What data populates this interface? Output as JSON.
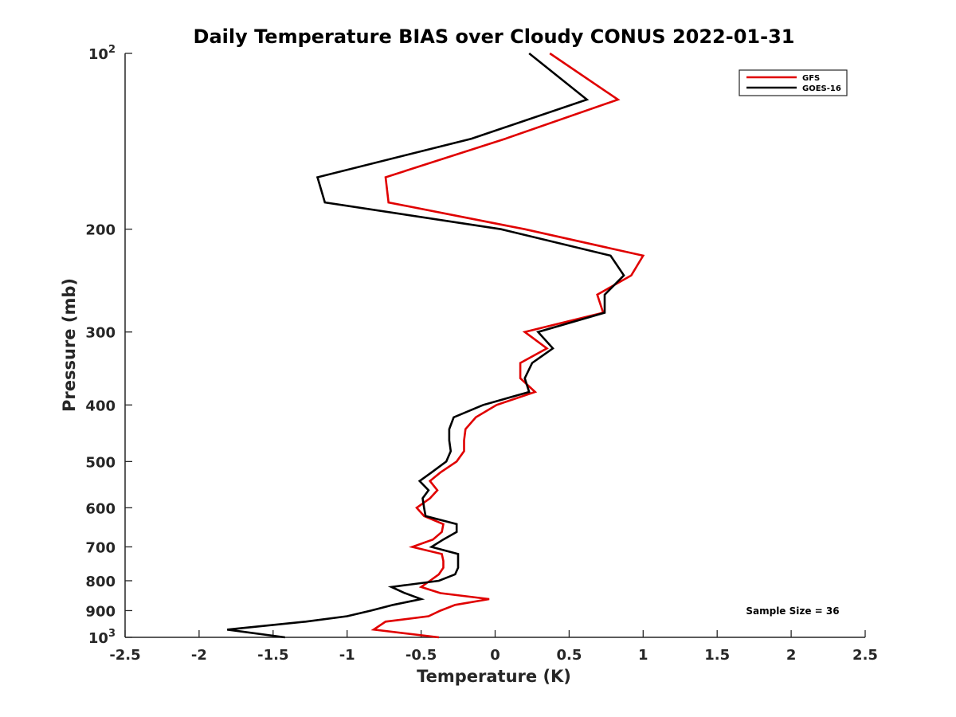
{
  "chart_data": {
    "type": "line",
    "title": "Daily Temperature BIAS over Cloudy CONUS 2022-01-31",
    "xlabel": "Temperature (K)",
    "ylabel": "Pressure (mb)",
    "xlim": [
      -2.5,
      2.5
    ],
    "ylim": [
      100,
      1000
    ],
    "yscale": "log",
    "y_reversed": true,
    "grid": false,
    "legend_position": "top-right",
    "x_ticks": [
      "-2.5",
      "-2",
      "-1.5",
      "-1",
      "-0.5",
      "0",
      "0.5",
      "1",
      "1.5",
      "2",
      "2.5"
    ],
    "y_ticks": [
      {
        "value": 100,
        "label": "10",
        "exp": "2"
      },
      {
        "value": 200,
        "label": "200"
      },
      {
        "value": 300,
        "label": "300"
      },
      {
        "value": 400,
        "label": "400"
      },
      {
        "value": 500,
        "label": "500"
      },
      {
        "value": 600,
        "label": "600"
      },
      {
        "value": 700,
        "label": "700"
      },
      {
        "value": 800,
        "label": "800"
      },
      {
        "value": 900,
        "label": "900"
      },
      {
        "value": 1000,
        "label": "10",
        "exp": "3"
      }
    ],
    "annotation": "Sample Size = 36",
    "series": [
      {
        "name": "GFS",
        "color": "#e00000",
        "points": [
          [
            0.37,
            100
          ],
          [
            0.83,
            120
          ],
          [
            0.07,
            140
          ],
          [
            -0.74,
            163
          ],
          [
            -0.72,
            180
          ],
          [
            0.2,
            200
          ],
          [
            1.0,
            222
          ],
          [
            0.92,
            240
          ],
          [
            0.69,
            259
          ],
          [
            0.73,
            278
          ],
          [
            0.2,
            300
          ],
          [
            0.35,
            320
          ],
          [
            0.17,
            339
          ],
          [
            0.17,
            360
          ],
          [
            0.27,
            380
          ],
          [
            0.01,
            400
          ],
          [
            -0.13,
            420
          ],
          [
            -0.2,
            440
          ],
          [
            -0.21,
            460
          ],
          [
            -0.21,
            480
          ],
          [
            -0.26,
            500
          ],
          [
            -0.37,
            522
          ],
          [
            -0.44,
            540
          ],
          [
            -0.39,
            560
          ],
          [
            -0.44,
            578
          ],
          [
            -0.53,
            600
          ],
          [
            -0.48,
            620
          ],
          [
            -0.35,
            640
          ],
          [
            -0.36,
            660
          ],
          [
            -0.42,
            680
          ],
          [
            -0.56,
            700
          ],
          [
            -0.36,
            720
          ],
          [
            -0.35,
            740
          ],
          [
            -0.35,
            760
          ],
          [
            -0.38,
            780
          ],
          [
            -0.44,
            800
          ],
          [
            -0.5,
            820
          ],
          [
            -0.37,
            840
          ],
          [
            -0.04,
            860
          ],
          [
            -0.27,
            880
          ],
          [
            -0.37,
            900
          ],
          [
            -0.45,
            920
          ],
          [
            -0.74,
            940
          ],
          [
            -0.82,
            970
          ],
          [
            -0.38,
            1000
          ]
        ]
      },
      {
        "name": "GOES-16",
        "color": "#000000",
        "points": [
          [
            0.23,
            100
          ],
          [
            0.62,
            120
          ],
          [
            -0.16,
            140
          ],
          [
            -1.2,
            163
          ],
          [
            -1.15,
            180
          ],
          [
            0.04,
            200
          ],
          [
            0.78,
            222
          ],
          [
            0.87,
            240
          ],
          [
            0.74,
            259
          ],
          [
            0.74,
            278
          ],
          [
            0.29,
            300
          ],
          [
            0.39,
            320
          ],
          [
            0.25,
            339
          ],
          [
            0.2,
            360
          ],
          [
            0.23,
            380
          ],
          [
            -0.08,
            400
          ],
          [
            -0.28,
            420
          ],
          [
            -0.31,
            440
          ],
          [
            -0.31,
            460
          ],
          [
            -0.3,
            480
          ],
          [
            -0.33,
            500
          ],
          [
            -0.43,
            522
          ],
          [
            -0.51,
            540
          ],
          [
            -0.45,
            560
          ],
          [
            -0.49,
            578
          ],
          [
            -0.48,
            600
          ],
          [
            -0.47,
            620
          ],
          [
            -0.26,
            640
          ],
          [
            -0.26,
            660
          ],
          [
            -0.35,
            680
          ],
          [
            -0.43,
            700
          ],
          [
            -0.25,
            720
          ],
          [
            -0.25,
            740
          ],
          [
            -0.25,
            760
          ],
          [
            -0.27,
            780
          ],
          [
            -0.38,
            800
          ],
          [
            -0.7,
            820
          ],
          [
            -0.61,
            840
          ],
          [
            -0.5,
            860
          ],
          [
            -0.69,
            880
          ],
          [
            -0.84,
            900
          ],
          [
            -1.0,
            920
          ],
          [
            -1.28,
            940
          ],
          [
            -1.81,
            970
          ],
          [
            -1.42,
            1000
          ]
        ]
      }
    ]
  }
}
